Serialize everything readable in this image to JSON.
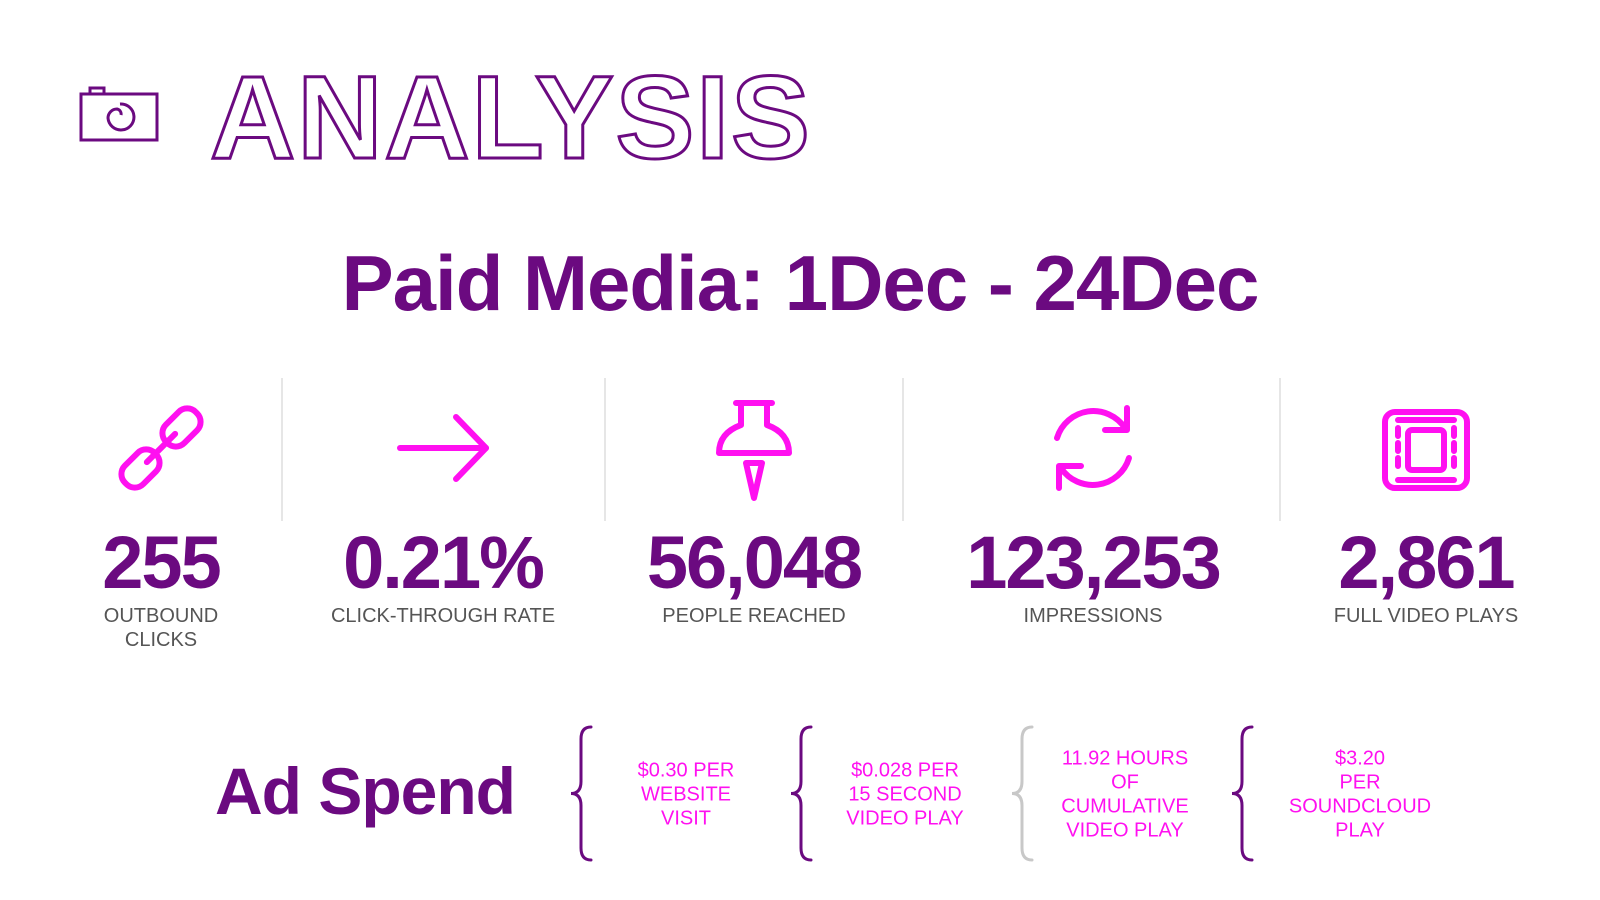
{
  "header": {
    "title": "ANALYSIS"
  },
  "subtitle": "Paid Media: 1Dec - 24Dec",
  "stats": [
    {
      "value": "255",
      "label": [
        "OUTBOUND",
        "CLICKS"
      ]
    },
    {
      "value": "0.21%",
      "label": [
        "CLICK-THROUGH RATE"
      ]
    },
    {
      "value": "56,048",
      "label": [
        "PEOPLE REACHED"
      ]
    },
    {
      "value": "123,253",
      "label": [
        "IMPRESSIONS"
      ]
    },
    {
      "value": "2,861",
      "label": [
        "FULL VIDEO PLAYS"
      ]
    }
  ],
  "ad_spend": {
    "title": "Ad Spend",
    "items": [
      {
        "lines": [
          "$0.30 PER",
          "WEBSITE",
          "VISIT"
        ]
      },
      {
        "lines": [
          "$0.028 PER",
          "15 SECOND",
          "VIDEO PLAY"
        ]
      },
      {
        "lines": [
          "11.92 HOURS",
          "OF",
          "CUMULATIVE",
          "VIDEO PLAY"
        ]
      },
      {
        "lines": [
          "$3.20",
          "PER",
          "SOUNDCLOUD",
          "PLAY"
        ]
      }
    ]
  }
}
